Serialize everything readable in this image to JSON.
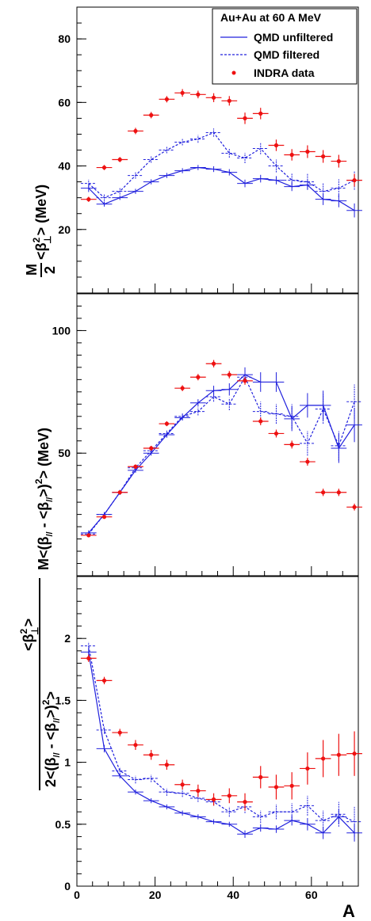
{
  "chart_data": [
    {
      "type": "line",
      "panel": "top",
      "ylabel": {
        "num": "M",
        "den": "2",
        "rest": " <β",
        "sup": "2",
        "sub": "⊥",
        "tail": "> (MeV)"
      },
      "ylim": [
        0,
        90
      ],
      "xlim": [
        0,
        72
      ],
      "yticks": [
        20,
        40,
        60,
        80
      ],
      "legend": {
        "title": "Au+Au at 60 A MeV",
        "entries": [
          "QMD unfiltered",
          "QMD filtered",
          "INDRA data"
        ]
      },
      "series": [
        {
          "name": "QMD unfiltered",
          "style": "solid",
          "color": "#2020dd",
          "x": [
            3,
            7,
            11,
            15,
            19,
            23,
            27,
            31,
            35,
            39,
            43,
            47,
            51,
            55,
            59,
            63,
            67,
            71
          ],
          "y": [
            33,
            28,
            30,
            32,
            35,
            37,
            38.5,
            39.5,
            39,
            38,
            34.5,
            36,
            35.5,
            33.5,
            34,
            29.5,
            29,
            26
          ],
          "err": [
            1.2,
            0.8,
            0.7,
            0.8,
            0.8,
            0.8,
            0.8,
            0.8,
            0.9,
            1,
            1.2,
            1.2,
            1.3,
            1.4,
            1.5,
            1.8,
            2,
            2.2
          ]
        },
        {
          "name": "QMD filtered",
          "style": "dashed",
          "color": "#2020dd",
          "x": [
            3,
            7,
            11,
            15,
            19,
            23,
            27,
            31,
            35,
            39,
            43,
            47,
            51,
            55,
            59,
            63,
            67,
            71
          ],
          "y": [
            34.5,
            30,
            32,
            37,
            42,
            45,
            47.5,
            48.5,
            50.5,
            44,
            42.5,
            45.5,
            40,
            35.5,
            35,
            32,
            33,
            35.5
          ],
          "err": [
            1.2,
            1,
            1,
            1,
            1,
            1,
            1,
            1.2,
            1.3,
            1.4,
            1.6,
            1.8,
            2,
            2.2,
            2.5,
            2.5,
            2.8,
            3
          ]
        },
        {
          "name": "INDRA data",
          "style": "points",
          "color": "#ee1111",
          "x": [
            3,
            7,
            11,
            15,
            19,
            23,
            27,
            31,
            35,
            39,
            43,
            47,
            51,
            55,
            59,
            63,
            67,
            71
          ],
          "y": [
            29.5,
            39.5,
            42,
            51,
            56,
            61,
            63,
            62.5,
            61.5,
            60.5,
            55,
            56.5,
            46.5,
            43.5,
            44.5,
            43,
            41.5,
            35.5
          ],
          "err": [
            0.8,
            0.8,
            0.8,
            1,
            1,
            1,
            1.2,
            1.2,
            1.4,
            1.5,
            1.8,
            1.8,
            1.8,
            1.8,
            2,
            2,
            2,
            2
          ]
        }
      ]
    },
    {
      "type": "line",
      "panel": "middle",
      "ylabel": {
        "pre": "M<(β",
        "sub1": "//",
        "mid": " - <β",
        "sub2": "//",
        "mid2": ">)",
        "sup": "2",
        "tail": "> (MeV)"
      },
      "ylim": [
        0,
        115
      ],
      "xlim": [
        0,
        72
      ],
      "yticks": [
        50,
        100
      ],
      "series": [
        {
          "name": "QMD unfiltered",
          "style": "solid",
          "color": "#2020dd",
          "x": [
            3,
            7,
            11,
            15,
            19,
            23,
            27,
            31,
            35,
            39,
            43,
            47,
            51,
            55,
            59,
            63,
            67,
            71
          ],
          "y": [
            17.5,
            25,
            34,
            43,
            50,
            57.5,
            64.5,
            70.5,
            75.5,
            76,
            82,
            79,
            79,
            64,
            69.5,
            69.5,
            52,
            61.5
          ],
          "err": [
            1,
            1,
            1,
            1,
            1,
            1.2,
            1.2,
            1.5,
            2,
            2.5,
            3,
            4,
            4,
            5,
            5,
            6,
            6,
            7
          ]
        },
        {
          "name": "QMD filtered",
          "style": "dashed",
          "color": "#2020dd",
          "x": [
            3,
            7,
            11,
            15,
            19,
            23,
            27,
            31,
            35,
            39,
            43,
            47,
            51,
            55,
            59,
            63,
            67,
            71
          ],
          "y": [
            17,
            25,
            34,
            44,
            51,
            58,
            65,
            67,
            73,
            70,
            81,
            67,
            66,
            65,
            54,
            68,
            53,
            71
          ],
          "err": [
            1,
            1,
            1,
            1,
            1,
            1.2,
            1.4,
            1.6,
            2,
            2.5,
            3,
            4,
            4,
            5,
            5,
            6,
            6,
            7
          ]
        },
        {
          "name": "INDRA data",
          "style": "points",
          "color": "#ee1111",
          "x": [
            3,
            7,
            11,
            15,
            19,
            23,
            27,
            31,
            35,
            39,
            43,
            47,
            51,
            55,
            59,
            63,
            67,
            71
          ],
          "y": [
            16.5,
            24,
            34,
            44.5,
            52,
            62,
            76.5,
            81,
            86.5,
            82,
            79.5,
            63,
            58,
            53.5,
            46.5,
            34,
            34,
            28
          ],
          "err": [
            0.8,
            0.8,
            0.8,
            0.9,
            1,
            1,
            1.2,
            1.3,
            1.5,
            1.5,
            1.6,
            1.6,
            1.6,
            1.6,
            1.6,
            1.5,
            1.5,
            1.4
          ]
        }
      ]
    },
    {
      "type": "line",
      "panel": "bottom",
      "ylabel": {
        "num_pre": "<β",
        "num_sup": "2",
        "num_sub": "⊥",
        "num_tail": ">",
        "den_pre": "2<(β",
        "den_sub1": "//",
        "den_mid": " - <β",
        "den_sub2": "//",
        "den_mid2": ">)",
        "den_sup": "2",
        "den_tail": ">"
      },
      "xlabel": "A",
      "ylim": [
        0,
        2.5
      ],
      "xlim": [
        0,
        72
      ],
      "yticks": [
        0,
        0.5,
        1,
        1.5,
        2
      ],
      "ytick_labels": [
        "0",
        "0.5",
        "1",
        "1.5",
        "2"
      ],
      "xticks": [
        0,
        20,
        40,
        60
      ],
      "series": [
        {
          "name": "QMD unfiltered",
          "style": "solid",
          "color": "#2020dd",
          "x": [
            3,
            7,
            11,
            15,
            19,
            23,
            27,
            31,
            35,
            39,
            43,
            47,
            51,
            55,
            59,
            63,
            67,
            71
          ],
          "y": [
            1.89,
            1.11,
            0.89,
            0.76,
            0.69,
            0.64,
            0.59,
            0.56,
            0.52,
            0.5,
            0.42,
            0.47,
            0.46,
            0.53,
            0.5,
            0.43,
            0.56,
            0.43
          ],
          "err": [
            0.03,
            0.03,
            0.02,
            0.02,
            0.02,
            0.02,
            0.02,
            0.02,
            0.02,
            0.02,
            0.03,
            0.03,
            0.03,
            0.04,
            0.05,
            0.05,
            0.06,
            0.07
          ]
        },
        {
          "name": "QMD filtered",
          "style": "dashed",
          "color": "#2020dd",
          "x": [
            3,
            7,
            11,
            15,
            19,
            23,
            27,
            31,
            35,
            39,
            43,
            47,
            51,
            55,
            59,
            63,
            67,
            71
          ],
          "y": [
            1.94,
            1.26,
            0.93,
            0.86,
            0.87,
            0.76,
            0.75,
            0.71,
            0.68,
            0.6,
            0.64,
            0.56,
            0.6,
            0.6,
            0.65,
            0.53,
            0.58,
            0.52
          ],
          "err": [
            0.03,
            0.03,
            0.03,
            0.03,
            0.03,
            0.03,
            0.03,
            0.03,
            0.03,
            0.04,
            0.05,
            0.05,
            0.06,
            0.07,
            0.08,
            0.08,
            0.1,
            0.12
          ]
        },
        {
          "name": "INDRA data",
          "style": "points",
          "color": "#ee1111",
          "x": [
            3,
            7,
            11,
            15,
            19,
            23,
            27,
            31,
            35,
            39,
            43,
            47,
            51,
            55,
            59,
            63,
            67,
            71
          ],
          "y": [
            1.84,
            1.66,
            1.24,
            1.14,
            1.06,
            0.98,
            0.82,
            0.77,
            0.7,
            0.73,
            0.68,
            0.88,
            0.8,
            0.81,
            0.95,
            1.03,
            1.06,
            1.07
          ],
          "err": [
            0.03,
            0.03,
            0.03,
            0.04,
            0.04,
            0.04,
            0.04,
            0.05,
            0.05,
            0.06,
            0.07,
            0.09,
            0.1,
            0.11,
            0.13,
            0.15,
            0.17,
            0.18
          ]
        }
      ]
    }
  ]
}
